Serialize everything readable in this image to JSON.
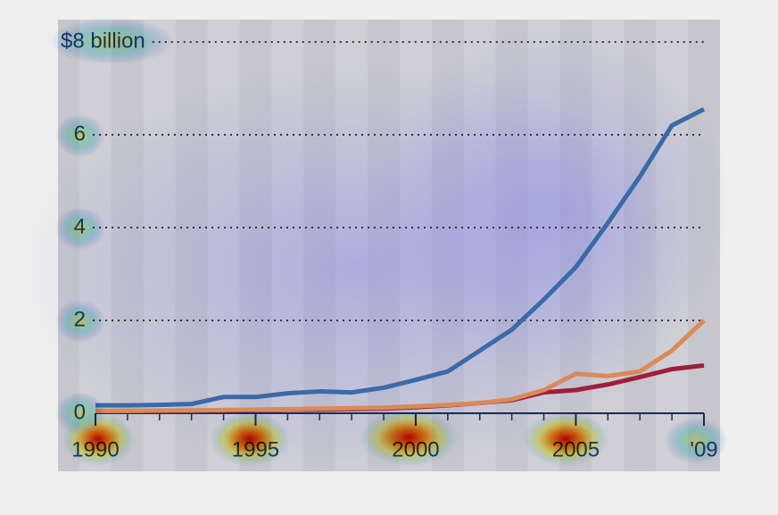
{
  "chart_data": {
    "type": "line",
    "x": [
      1990,
      1991,
      1992,
      1993,
      1994,
      1995,
      1996,
      1997,
      1998,
      1999,
      2000,
      2001,
      2002,
      2003,
      2004,
      2005,
      2006,
      2007,
      2008,
      2009
    ],
    "series": [
      {
        "color": "#3a6aa8",
        "values": [
          0.17,
          0.17,
          0.18,
          0.2,
          0.35,
          0.35,
          0.43,
          0.47,
          0.45,
          0.55,
          0.72,
          0.9,
          1.35,
          1.8,
          2.45,
          3.15,
          4.1,
          5.1,
          6.2,
          6.55
        ]
      },
      {
        "color": "#d98a5a",
        "values": [
          0.05,
          0.05,
          0.06,
          0.06,
          0.07,
          0.08,
          0.09,
          0.1,
          0.11,
          0.12,
          0.15,
          0.18,
          0.22,
          0.3,
          0.5,
          0.85,
          0.8,
          0.9,
          1.35,
          2.0
        ]
      },
      {
        "color": "#9e1f3a",
        "values": [
          0.05,
          0.05,
          0.05,
          0.06,
          0.06,
          0.07,
          0.08,
          0.08,
          0.09,
          0.1,
          0.13,
          0.17,
          0.22,
          0.28,
          0.45,
          0.5,
          0.62,
          0.78,
          0.95,
          1.03
        ]
      }
    ],
    "xlim": [
      1990,
      2009
    ],
    "xticks": [
      1990,
      1995,
      2000,
      2005,
      {
        "value": 2009,
        "label": "'09"
      }
    ],
    "ylim": [
      0,
      8
    ],
    "yticks": [
      0,
      2,
      4,
      6,
      {
        "value": 8,
        "label": "$8 billion"
      }
    ],
    "grid": true
  }
}
